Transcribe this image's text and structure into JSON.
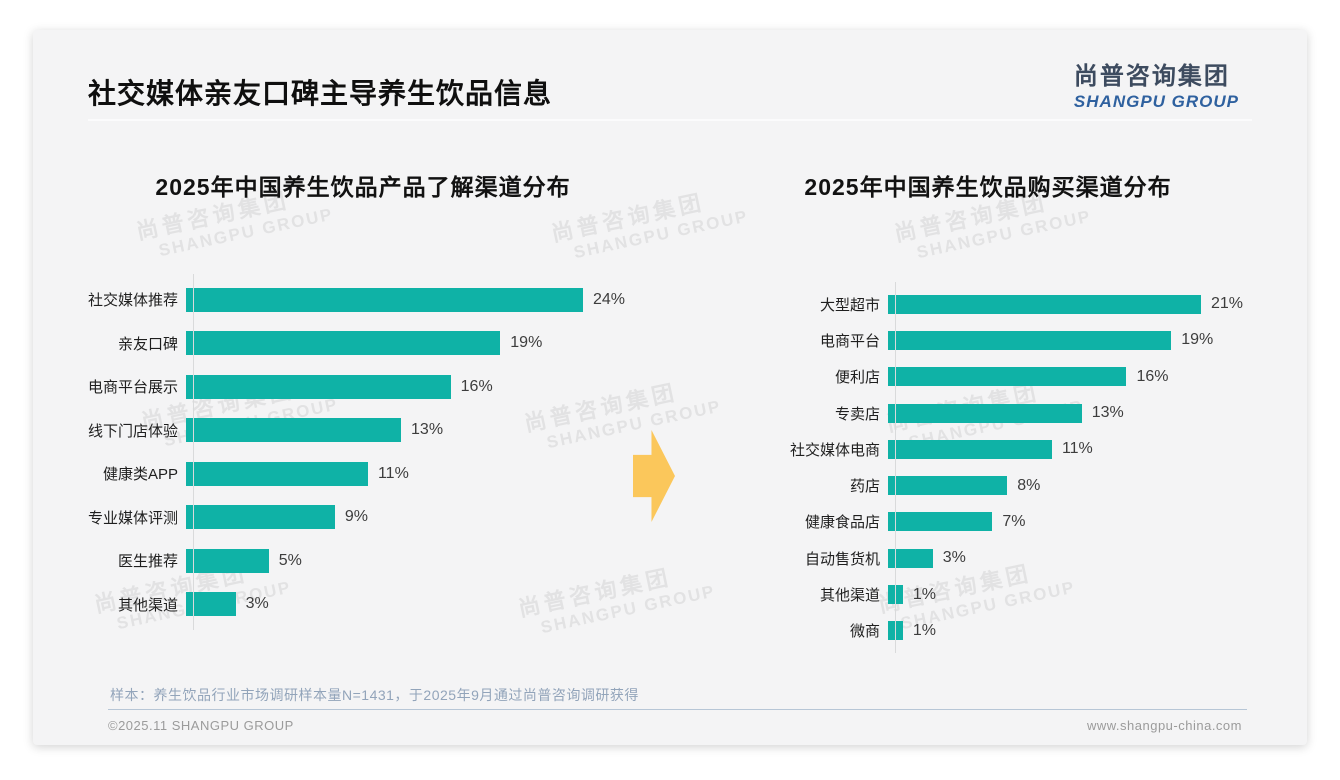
{
  "slide": {
    "title": "社交媒体亲友口碑主导养生饮品信息",
    "logo": {
      "cn": "尚普咨询集团",
      "en": "SHANGPU GROUP"
    },
    "watermark": {
      "cn": "尚普咨询集团",
      "en": "SHANGPU GROUP"
    },
    "footnote": "样本：养生饮品行业市场调研样本量N=1431，于2025年9月通过尚普咨询调研获得",
    "footer_left": "©2025.11 SHANGPU GROUP",
    "footer_right": "www.shangpu-china.com",
    "accent_color": "#0fb2a6",
    "arrow_color": "#fbc75b",
    "arrow_icon": "right-arrow"
  },
  "chart_data": [
    {
      "type": "bar",
      "orientation": "horizontal",
      "title": "2025年中国养生饮品产品了解渠道分布",
      "categories": [
        "社交媒体推荐",
        "亲友口碑",
        "电商平台展示",
        "线下门店体验",
        "健康类APP",
        "专业媒体评测",
        "医生推荐",
        "其他渠道"
      ],
      "values": [
        24,
        19,
        16,
        13,
        11,
        9,
        5,
        3
      ],
      "value_suffix": "%",
      "bar_color": "#0fb2a6",
      "xlim": [
        0,
        24
      ],
      "grid": false,
      "legend": "none"
    },
    {
      "type": "bar",
      "orientation": "horizontal",
      "title": "2025年中国养生饮品购买渠道分布",
      "categories": [
        "大型超市",
        "电商平台",
        "便利店",
        "专卖店",
        "社交媒体电商",
        "药店",
        "健康食品店",
        "自动售货机",
        "其他渠道",
        "微商"
      ],
      "values": [
        21,
        19,
        16,
        13,
        11,
        8,
        7,
        3,
        1,
        1
      ],
      "value_suffix": "%",
      "bar_color": "#0fb2a6",
      "xlim": [
        0,
        21
      ],
      "grid": false,
      "legend": "none"
    }
  ]
}
